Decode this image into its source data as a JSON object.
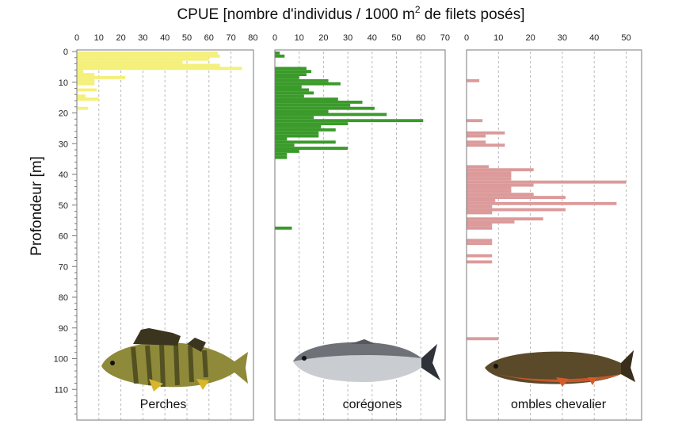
{
  "chart_data": {
    "type": "bar",
    "orientation": "horizontal",
    "title": "CPUE [nombre d'individus / 1000 m² de filets posés]",
    "title_main": "CPUE [nombre d'individus / 1000 m",
    "title_sup": "2",
    "title_end": " de filets posés]",
    "ylabel": "Profondeur [m]",
    "y_axis": {
      "direction": "down",
      "range": [
        0,
        120
      ],
      "tick_values": [
        0,
        10,
        20,
        30,
        40,
        50,
        60,
        70,
        80,
        90,
        100,
        110
      ],
      "tick_labels": [
        "0",
        "10",
        "20",
        "30",
        "40",
        "50",
        "60",
        "70",
        "80",
        "90",
        "100",
        "110"
      ]
    },
    "grid": "vertical dashed",
    "panels": [
      {
        "name": "Perches",
        "color": "#f4f07a",
        "xlim": [
          0,
          80
        ],
        "x_tick_values": [
          0,
          10,
          20,
          30,
          40,
          50,
          60,
          70,
          80
        ],
        "x_tick_labels": [
          "0",
          "10",
          "20",
          "30",
          "40",
          "50",
          "60",
          "70",
          "80"
        ],
        "bars": [
          {
            "depth": [
              0,
              1
            ],
            "value": 64
          },
          {
            "depth": [
              1,
              2
            ],
            "value": 65
          },
          {
            "depth": [
              2,
              3
            ],
            "value": 60
          },
          {
            "depth": [
              3,
              4
            ],
            "value": 48
          },
          {
            "depth": [
              4,
              5
            ],
            "value": 65
          },
          {
            "depth": [
              5,
              6
            ],
            "value": 75
          },
          {
            "depth": [
              6,
              7
            ],
            "value": 3
          },
          {
            "depth": [
              7,
              8
            ],
            "value": 8
          },
          {
            "depth": [
              8,
              9
            ],
            "value": 22
          },
          {
            "depth": [
              9,
              10
            ],
            "value": 8
          },
          {
            "depth": [
              10,
              11
            ],
            "value": 8
          },
          {
            "depth": [
              12,
              13
            ],
            "value": 9
          },
          {
            "depth": [
              14,
              15
            ],
            "value": 4
          },
          {
            "depth": [
              15,
              16
            ],
            "value": 10
          },
          {
            "depth": [
              18,
              19
            ],
            "value": 5
          }
        ]
      },
      {
        "name": "corégones",
        "color": "#3a9a2a",
        "xlim": [
          0,
          70
        ],
        "x_tick_values": [
          0,
          10,
          20,
          30,
          40,
          50,
          60,
          70
        ],
        "x_tick_labels": [
          "0",
          "10",
          "20",
          "30",
          "40",
          "50",
          "60",
          "70"
        ],
        "bars": [
          {
            "depth": [
              0,
              1
            ],
            "value": 2
          },
          {
            "depth": [
              1,
              2
            ],
            "value": 4
          },
          {
            "depth": [
              5,
              6
            ],
            "value": 13
          },
          {
            "depth": [
              6,
              7
            ],
            "value": 15
          },
          {
            "depth": [
              7,
              8
            ],
            "value": 13
          },
          {
            "depth": [
              8,
              9
            ],
            "value": 10
          },
          {
            "depth": [
              9,
              10
            ],
            "value": 22
          },
          {
            "depth": [
              10,
              11
            ],
            "value": 27
          },
          {
            "depth": [
              11,
              12
            ],
            "value": 11
          },
          {
            "depth": [
              12,
              13
            ],
            "value": 14
          },
          {
            "depth": [
              13,
              14
            ],
            "value": 16
          },
          {
            "depth": [
              14,
              15
            ],
            "value": 12
          },
          {
            "depth": [
              15,
              16
            ],
            "value": 26
          },
          {
            "depth": [
              16,
              17
            ],
            "value": 36
          },
          {
            "depth": [
              17,
              18
            ],
            "value": 31
          },
          {
            "depth": [
              18,
              19
            ],
            "value": 41
          },
          {
            "depth": [
              19,
              20
            ],
            "value": 22
          },
          {
            "depth": [
              20,
              21
            ],
            "value": 46
          },
          {
            "depth": [
              21,
              22
            ],
            "value": 16
          },
          {
            "depth": [
              22,
              23
            ],
            "value": 61
          },
          {
            "depth": [
              23,
              24
            ],
            "value": 30
          },
          {
            "depth": [
              24,
              25
            ],
            "value": 19
          },
          {
            "depth": [
              25,
              26
            ],
            "value": 25
          },
          {
            "depth": [
              26,
              27
            ],
            "value": 18
          },
          {
            "depth": [
              27,
              28
            ],
            "value": 18
          },
          {
            "depth": [
              28,
              29
            ],
            "value": 5
          },
          {
            "depth": [
              29,
              30
            ],
            "value": 25
          },
          {
            "depth": [
              30,
              31
            ],
            "value": 8
          },
          {
            "depth": [
              31,
              32
            ],
            "value": 30
          },
          {
            "depth": [
              32,
              33
            ],
            "value": 10
          },
          {
            "depth": [
              33,
              34
            ],
            "value": 5
          },
          {
            "depth": [
              34,
              35
            ],
            "value": 5
          },
          {
            "depth": [
              57,
              58
            ],
            "value": 7
          }
        ]
      },
      {
        "name": "ombles chevalier",
        "color": "#dc9a9a",
        "xlim": [
          0,
          55
        ],
        "x_tick_values": [
          0,
          10,
          20,
          30,
          40,
          50
        ],
        "x_tick_labels": [
          "0",
          "10",
          "20",
          "30",
          "40",
          "50"
        ],
        "bars": [
          {
            "depth": [
              9,
              10
            ],
            "value": 4
          },
          {
            "depth": [
              22,
              23
            ],
            "value": 5
          },
          {
            "depth": [
              26,
              27
            ],
            "value": 12
          },
          {
            "depth": [
              27,
              28
            ],
            "value": 6
          },
          {
            "depth": [
              29,
              30
            ],
            "value": 6
          },
          {
            "depth": [
              30,
              31
            ],
            "value": 12
          },
          {
            "depth": [
              37,
              38
            ],
            "value": 7
          },
          {
            "depth": [
              38,
              39
            ],
            "value": 21
          },
          {
            "depth": [
              39,
              40
            ],
            "value": 14
          },
          {
            "depth": [
              40,
              41
            ],
            "value": 14
          },
          {
            "depth": [
              41,
              42
            ],
            "value": 14
          },
          {
            "depth": [
              42,
              43
            ],
            "value": 50
          },
          {
            "depth": [
              43,
              44
            ],
            "value": 21
          },
          {
            "depth": [
              44,
              45
            ],
            "value": 14
          },
          {
            "depth": [
              45,
              46
            ],
            "value": 14
          },
          {
            "depth": [
              46,
              47
            ],
            "value": 21
          },
          {
            "depth": [
              47,
              48
            ],
            "value": 31
          },
          {
            "depth": [
              48,
              49
            ],
            "value": 9
          },
          {
            "depth": [
              49,
              50
            ],
            "value": 47
          },
          {
            "depth": [
              50,
              51
            ],
            "value": 8
          },
          {
            "depth": [
              51,
              52
            ],
            "value": 31
          },
          {
            "depth": [
              52,
              53
            ],
            "value": 8
          },
          {
            "depth": [
              54,
              55
            ],
            "value": 24
          },
          {
            "depth": [
              55,
              56
            ],
            "value": 15
          },
          {
            "depth": [
              56,
              57
            ],
            "value": 8
          },
          {
            "depth": [
              57,
              58
            ],
            "value": 8
          },
          {
            "depth": [
              61,
              62
            ],
            "value": 8
          },
          {
            "depth": [
              62,
              63
            ],
            "value": 8
          },
          {
            "depth": [
              66,
              67
            ],
            "value": 8
          },
          {
            "depth": [
              68,
              69
            ],
            "value": 8
          },
          {
            "depth": [
              93,
              94
            ],
            "value": 10
          }
        ]
      }
    ]
  }
}
